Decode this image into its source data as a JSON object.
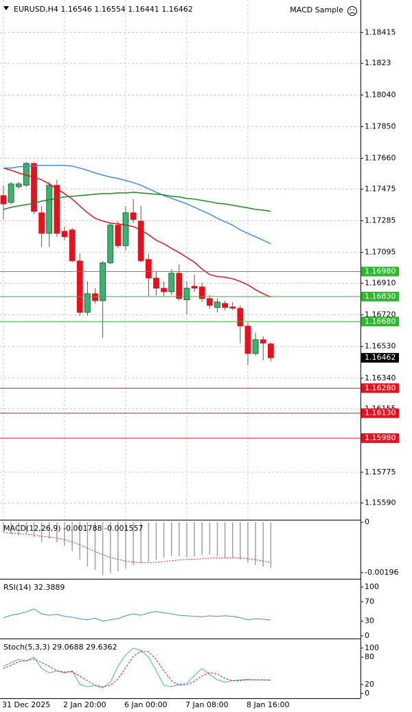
{
  "chart_data": [
    {
      "type": "candlestick",
      "title": "EURUSD,H4  1.16546 1.16554 1.16441 1.16462",
      "expert": "MACD Sample",
      "categories": [
        "31 Dec 2025",
        null,
        null,
        null,
        null,
        null,
        null,
        null,
        "2 Jan 20:00",
        null,
        null,
        null,
        null,
        null,
        null,
        null,
        "6 Jan 00:00",
        null,
        null,
        null,
        null,
        null,
        null,
        null,
        "7 Jan 08:00",
        null,
        null,
        null,
        null,
        null,
        null,
        null,
        "8 Jan 16:00",
        null,
        null,
        null
      ],
      "open": [
        1.17436,
        1.17395,
        1.17489,
        1.17498,
        1.17629,
        1.17333,
        1.17209,
        1.17498,
        1.17222,
        1.1723,
        1.17044,
        1.16735,
        1.16847,
        1.16805,
        1.17032,
        1.17259,
        1.17135,
        1.17333,
        1.17283,
        1.17053,
        1.16941,
        1.1688,
        1.16859,
        1.1697,
        1.1681,
        1.16892,
        1.16888,
        1.16818,
        1.16764,
        1.16789,
        1.16768,
        1.1676,
        1.16653,
        1.16488,
        1.16571,
        1.16546
      ],
      "high": [
        1.17498,
        1.17518,
        1.17518,
        1.17638,
        1.17638,
        1.17374,
        1.17518,
        1.17531,
        1.1725,
        1.17242,
        1.17086,
        1.16921,
        1.1688,
        1.17044,
        1.17271,
        1.17283,
        1.17374,
        1.17415,
        1.17374,
        1.17086,
        1.16983,
        1.16921,
        1.16995,
        1.17024,
        1.16921,
        1.16962,
        1.16913,
        1.16838,
        1.16818,
        1.16805,
        1.16797,
        1.16777,
        1.16674,
        1.16612,
        1.16591,
        1.16554
      ],
      "low": [
        1.17292,
        1.17382,
        1.17477,
        1.17489,
        1.17325,
        1.17127,
        1.17127,
        1.17189,
        1.17168,
        1.17036,
        1.16715,
        1.16715,
        1.16789,
        1.16583,
        1.17024,
        1.17119,
        1.17106,
        1.17271,
        1.17036,
        1.1683,
        1.16838,
        1.1683,
        1.16838,
        1.16805,
        1.16723,
        1.16859,
        1.16797,
        1.16756,
        1.16735,
        1.16748,
        1.16748,
        1.1655,
        1.16418,
        1.16476,
        1.16447,
        1.16441
      ],
      "close": [
        1.17386,
        1.17506,
        1.17506,
        1.17629,
        1.17341,
        1.17209,
        1.17498,
        1.17209,
        1.17189,
        1.17044,
        1.16735,
        1.16847,
        1.16805,
        1.17032,
        1.17259,
        1.17135,
        1.17333,
        1.17292,
        1.17044,
        1.16941,
        1.1688,
        1.16859,
        1.1697,
        1.16818,
        1.1688,
        1.1688,
        1.16818,
        1.16777,
        1.16797,
        1.16764,
        1.1676,
        1.16653,
        1.16488,
        1.16571,
        1.1655,
        1.16462
      ],
      "up_color": "#3cb371",
      "down_color": "#e8101c",
      "series": [
        {
          "color": "#e8101c",
          "values": [
            1.17601,
            1.17588,
            1.17572,
            1.17559,
            1.17547,
            1.17531,
            1.17506,
            1.17477,
            1.17448,
            1.17415,
            1.17374,
            1.17333,
            1.173,
            1.17283,
            1.17271,
            1.17267,
            1.17259,
            1.1725,
            1.1723,
            1.17201,
            1.17168,
            1.17147,
            1.17119,
            1.17094,
            1.17065,
            1.17036,
            1.16995,
            1.16962,
            1.1695,
            1.16946,
            1.16937,
            1.16921,
            1.169,
            1.16871,
            1.16847,
            1.16826
          ]
        },
        {
          "color": "#3a8ee6",
          "values": [
            1.17601,
            1.17601,
            1.17609,
            1.17613,
            1.17613,
            1.17617,
            1.17617,
            1.17617,
            1.17617,
            1.17613,
            1.17601,
            1.17588,
            1.17572,
            1.17559,
            1.17547,
            1.17539,
            1.17526,
            1.17514,
            1.17498,
            1.17477,
            1.17456,
            1.17436,
            1.17419,
            1.17403,
            1.17386,
            1.17366,
            1.17345,
            1.17325,
            1.173,
            1.17279,
            1.17259,
            1.1723,
            1.17209,
            1.17189,
            1.17168,
            1.17147
          ]
        },
        {
          "color": "#1a8a1a",
          "values": [
            1.17353,
            1.17366,
            1.17374,
            1.17382,
            1.1739,
            1.17403,
            1.17411,
            1.17419,
            1.17428,
            1.17432,
            1.17436,
            1.1744,
            1.17444,
            1.17448,
            1.17448,
            1.17452,
            1.17452,
            1.17456,
            1.17452,
            1.17448,
            1.17444,
            1.1744,
            1.17432,
            1.17428,
            1.17419,
            1.17415,
            1.17407,
            1.17399,
            1.1739,
            1.17386,
            1.17378,
            1.1737,
            1.17362,
            1.17353,
            1.17349,
            1.17341
          ]
        }
      ],
      "levels": [
        {
          "value": 1.1698,
          "label": "1.16980",
          "color": "#2eb82e"
        },
        {
          "value": 1.1683,
          "label": "1.16830",
          "color": "#2eb82e"
        },
        {
          "value": 1.1668,
          "label": "1.16680",
          "color": "#2eb82e"
        },
        {
          "value": 1.1628,
          "label": "1.16280",
          "color": "#e8101c"
        },
        {
          "value": 1.1613,
          "label": "1.16130",
          "color": "#e8101c"
        },
        {
          "value": 1.1598,
          "label": "1.15980",
          "color": "#e8101c"
        }
      ],
      "current_price": 1.16462,
      "ylim": [
        1.1549,
        1.1861
      ],
      "yticks": [
        1.18415,
        1.1823,
        {
          "value": 1.1804,
          "label": "1.18040"
        },
        {
          "value": 1.1785,
          "label": "1.17850"
        },
        {
          "value": 1.1766,
          "label": "1.17660"
        },
        1.17475,
        1.17285,
        1.17095,
        {
          "value": 1.1691,
          "label": "1.16910"
        },
        {
          "value": 1.1672,
          "label": "1.16720"
        },
        {
          "value": 1.1653,
          "label": "1.16530"
        },
        {
          "value": 1.1634,
          "label": "1.16340"
        },
        1.16155,
        1.15775,
        {
          "value": 1.1559,
          "label": "1.15590"
        }
      ],
      "grid": true
    },
    {
      "type": "macd",
      "title": "MACD(12,26,9) -0.001788 -0.001557",
      "series": [
        {
          "style": "histogram",
          "color": "#a0a0a0",
          "values": [
            -0.00038,
            -0.00046,
            -0.00051,
            -0.00046,
            -0.00059,
            -0.00078,
            -0.00064,
            -0.00078,
            -0.00091,
            -0.00113,
            -0.00145,
            -0.00172,
            -0.00185,
            -0.00207,
            -0.00199,
            -0.00191,
            -0.0018,
            -0.00167,
            -0.00158,
            -0.00153,
            -0.00145,
            -0.00137,
            -0.00132,
            -0.00132,
            -0.00137,
            -0.00132,
            -0.00126,
            -0.00126,
            -0.00132,
            -0.00137,
            -0.00137,
            -0.00145,
            -0.00158,
            -0.00167,
            -0.00172,
            -0.001788
          ]
        },
        {
          "style": "dashed",
          "color": "#e8101c",
          "values": [
            -0.0004,
            -0.00042,
            -0.00045,
            -0.00047,
            -0.0005,
            -0.00055,
            -0.00058,
            -0.00062,
            -0.00068,
            -0.00076,
            -0.00088,
            -0.00101,
            -0.00114,
            -0.00126,
            -0.00137,
            -0.00145,
            -0.00151,
            -0.00155,
            -0.00157,
            -0.00157,
            -0.00156,
            -0.00153,
            -0.0015,
            -0.00147,
            -0.00145,
            -0.00144,
            -0.00142,
            -0.0014,
            -0.00139,
            -0.00139,
            -0.00138,
            -0.00139,
            -0.00142,
            -0.00146,
            -0.00151,
            -0.001557
          ]
        }
      ],
      "ylim": [
        -0.0022,
        4e-05
      ],
      "yticks": [
        0,
        -0.00196
      ]
    },
    {
      "type": "line",
      "title": "RSI(14) 32.3889",
      "series": [
        {
          "style": "solid",
          "color": "#3a8ee6",
          "values": [
            37,
            42,
            45,
            49,
            55,
            45,
            42,
            44,
            40,
            38,
            35,
            33,
            36,
            30,
            33,
            35,
            41,
            45,
            42,
            47,
            50,
            47,
            45,
            42,
            41,
            40,
            39,
            41,
            40,
            41,
            40,
            37,
            33,
            35,
            34,
            32.3889
          ]
        }
      ],
      "ylim": [
        -5.6,
        114
      ],
      "yticks": [
        100,
        70,
        30,
        0
      ]
    },
    {
      "type": "line",
      "title": "Stoch(5,3,3) 29.0688 29.6362",
      "series": [
        {
          "style": "solid",
          "color": "#3ab0c8",
          "values": [
            60,
            68,
            75,
            72,
            80,
            55,
            45,
            50,
            45,
            50,
            20,
            15,
            18,
            12,
            25,
            60,
            85,
            100,
            95,
            80,
            50,
            18,
            15,
            20,
            22,
            40,
            55,
            42,
            30,
            25,
            28,
            30,
            31,
            30,
            30,
            29.0688
          ]
        },
        {
          "style": "dashed",
          "color": "#e8101c",
          "values": [
            55,
            62,
            70,
            72,
            76,
            68,
            60,
            50,
            47,
            48,
            38,
            28,
            18,
            15,
            18,
            32,
            57,
            82,
            93,
            92,
            75,
            50,
            28,
            18,
            19,
            27,
            39,
            46,
            43,
            33,
            28,
            28,
            30,
            30,
            30,
            29.6362
          ]
        }
      ],
      "ylim": [
        -10.6,
        118
      ],
      "yticks": [
        100,
        80,
        20,
        0
      ]
    }
  ]
}
